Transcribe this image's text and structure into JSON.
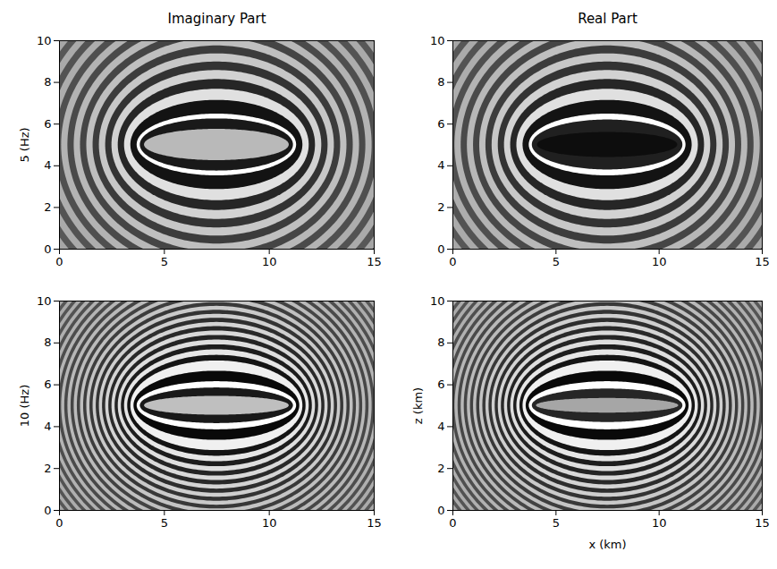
{
  "chart_data": [
    {
      "type": "heatmap",
      "title": "Imaginary Part",
      "ylabel": "5 (Hz)",
      "xlim": [
        0,
        15
      ],
      "ylim": [
        0,
        10
      ],
      "xticks": [
        0,
        5,
        10,
        15
      ],
      "yticks": [
        0,
        2,
        4,
        6,
        8,
        10
      ],
      "zlim": [
        -1,
        1
      ],
      "center": [
        7.5,
        5
      ],
      "rings": [
        {
          "a": 9.5,
          "b": 8.83,
          "value": -0.3
        },
        {
          "a": 9.2,
          "b": 8.51,
          "value": 0.3
        },
        {
          "a": 8.9,
          "b": 8.18,
          "value": -0.32
        },
        {
          "a": 8.6,
          "b": 7.86,
          "value": 0.33
        },
        {
          "a": 8.3,
          "b": 7.53,
          "value": -0.35
        },
        {
          "a": 8.0,
          "b": 7.19,
          "value": 0.36
        },
        {
          "a": 7.7,
          "b": 6.86,
          "value": -0.38
        },
        {
          "a": 7.4,
          "b": 6.52,
          "value": 0.4
        },
        {
          "a": 7.1,
          "b": 6.18,
          "value": -0.42
        },
        {
          "a": 6.8,
          "b": 5.83,
          "value": 0.44
        },
        {
          "a": 6.5,
          "b": 5.48,
          "value": -0.46
        },
        {
          "a": 6.2,
          "b": 5.12,
          "value": 0.5
        },
        {
          "a": 5.9,
          "b": 4.75,
          "value": -0.53
        },
        {
          "a": 5.6,
          "b": 4.37,
          "value": 0.56
        },
        {
          "a": 5.3,
          "b": 3.98,
          "value": -0.6
        },
        {
          "a": 5.0,
          "b": 3.57,
          "value": 0.65
        },
        {
          "a": 4.7,
          "b": 3.14,
          "value": -0.7
        },
        {
          "a": 4.4,
          "b": 2.67,
          "value": 0.76
        },
        {
          "a": 4.1,
          "b": 2.14,
          "value": -0.85
        },
        {
          "a": 3.8,
          "b": 1.48,
          "value": 1.0
        },
        {
          "a": 3.65,
          "b": 1.25,
          "value": -0.8
        },
        {
          "a": 3.45,
          "b": 0.75,
          "value": 0.45
        }
      ]
    },
    {
      "type": "heatmap",
      "title": "Real Part",
      "xlim": [
        0,
        15
      ],
      "ylim": [
        0,
        10
      ],
      "xticks": [
        0,
        5,
        10,
        15
      ],
      "yticks": [
        0,
        2,
        4,
        6,
        8,
        10
      ],
      "zlim": [
        -1,
        1
      ],
      "center": [
        7.5,
        5
      ],
      "rings": [
        {
          "a": 9.5,
          "b": 8.83,
          "value": -0.3
        },
        {
          "a": 9.2,
          "b": 8.51,
          "value": 0.3
        },
        {
          "a": 8.9,
          "b": 8.18,
          "value": -0.32
        },
        {
          "a": 8.6,
          "b": 7.86,
          "value": 0.33
        },
        {
          "a": 8.3,
          "b": 7.53,
          "value": -0.35
        },
        {
          "a": 8.0,
          "b": 7.19,
          "value": 0.36
        },
        {
          "a": 7.7,
          "b": 6.86,
          "value": -0.38
        },
        {
          "a": 7.4,
          "b": 6.52,
          "value": 0.4
        },
        {
          "a": 7.1,
          "b": 6.18,
          "value": -0.42
        },
        {
          "a": 6.8,
          "b": 5.83,
          "value": 0.44
        },
        {
          "a": 6.5,
          "b": 5.48,
          "value": -0.46
        },
        {
          "a": 6.2,
          "b": 5.12,
          "value": 0.5
        },
        {
          "a": 5.9,
          "b": 4.75,
          "value": -0.53
        },
        {
          "a": 5.6,
          "b": 4.37,
          "value": 0.56
        },
        {
          "a": 5.3,
          "b": 3.98,
          "value": -0.6
        },
        {
          "a": 5.0,
          "b": 3.57,
          "value": 0.65
        },
        {
          "a": 4.7,
          "b": 3.14,
          "value": -0.7
        },
        {
          "a": 4.4,
          "b": 2.67,
          "value": 0.76
        },
        {
          "a": 4.1,
          "b": 2.14,
          "value": -0.85
        },
        {
          "a": 3.8,
          "b": 1.48,
          "value": 1.0
        },
        {
          "a": 3.65,
          "b": 1.2,
          "value": -0.75
        },
        {
          "a": 3.4,
          "b": 0.6,
          "value": -0.9
        }
      ]
    },
    {
      "type": "heatmap",
      "ylabel": "10 (Hz)",
      "xlim": [
        0,
        15
      ],
      "ylim": [
        0,
        10
      ],
      "xticks": [
        0,
        5,
        10,
        15
      ],
      "yticks": [
        0,
        2,
        4,
        6,
        8,
        10
      ],
      "zlim": [
        -1,
        1
      ],
      "center": [
        7.5,
        5
      ],
      "rings": [
        {
          "a": 9.5,
          "b": 8.83,
          "value": 0.28
        },
        {
          "a": 9.35,
          "b": 8.67,
          "value": -0.3
        },
        {
          "a": 9.2,
          "b": 8.51,
          "value": 0.31
        },
        {
          "a": 9.05,
          "b": 8.35,
          "value": -0.32
        },
        {
          "a": 8.9,
          "b": 8.18,
          "value": 0.33
        },
        {
          "a": 8.75,
          "b": 8.02,
          "value": -0.34
        },
        {
          "a": 8.6,
          "b": 7.86,
          "value": 0.35
        },
        {
          "a": 8.45,
          "b": 7.69,
          "value": -0.36
        },
        {
          "a": 8.3,
          "b": 7.53,
          "value": 0.37
        },
        {
          "a": 8.15,
          "b": 7.36,
          "value": -0.38
        },
        {
          "a": 8.0,
          "b": 7.19,
          "value": 0.39
        },
        {
          "a": 7.85,
          "b": 7.03,
          "value": -0.4
        },
        {
          "a": 7.7,
          "b": 6.86,
          "value": 0.41
        },
        {
          "a": 7.55,
          "b": 6.69,
          "value": -0.42
        },
        {
          "a": 7.4,
          "b": 6.52,
          "value": 0.43
        },
        {
          "a": 7.25,
          "b": 6.35,
          "value": -0.44
        },
        {
          "a": 7.1,
          "b": 6.18,
          "value": 0.45
        },
        {
          "a": 6.95,
          "b": 6.0,
          "value": -0.46
        },
        {
          "a": 6.8,
          "b": 5.83,
          "value": 0.47
        },
        {
          "a": 6.65,
          "b": 5.65,
          "value": -0.48
        },
        {
          "a": 6.5,
          "b": 5.48,
          "value": 0.5
        },
        {
          "a": 6.35,
          "b": 5.3,
          "value": -0.52
        },
        {
          "a": 6.2,
          "b": 5.12,
          "value": 0.54
        },
        {
          "a": 6.05,
          "b": 4.93,
          "value": -0.56
        },
        {
          "a": 5.9,
          "b": 4.75,
          "value": 0.58
        },
        {
          "a": 5.75,
          "b": 4.56,
          "value": -0.6
        },
        {
          "a": 5.6,
          "b": 4.37,
          "value": 0.62
        },
        {
          "a": 5.45,
          "b": 4.18,
          "value": -0.64
        },
        {
          "a": 5.3,
          "b": 3.98,
          "value": 0.66
        },
        {
          "a": 5.15,
          "b": 3.78,
          "value": -0.68
        },
        {
          "a": 5.0,
          "b": 3.57,
          "value": 0.7
        },
        {
          "a": 4.85,
          "b": 3.36,
          "value": -0.72
        },
        {
          "a": 4.7,
          "b": 3.14,
          "value": 0.74
        },
        {
          "a": 4.55,
          "b": 2.91,
          "value": -0.77
        },
        {
          "a": 4.4,
          "b": 2.67,
          "value": 0.8
        },
        {
          "a": 4.25,
          "b": 2.41,
          "value": -0.84
        },
        {
          "a": 4.1,
          "b": 2.14,
          "value": 0.88
        },
        {
          "a": 3.95,
          "b": 1.65,
          "value": -0.93
        },
        {
          "a": 3.8,
          "b": 1.15,
          "value": 1.0
        },
        {
          "a": 3.65,
          "b": 0.85,
          "value": -0.8
        },
        {
          "a": 3.45,
          "b": 0.45,
          "value": 0.5
        }
      ]
    },
    {
      "type": "heatmap",
      "xlabel": "x (km)",
      "ylabel": "z (km)",
      "xlim": [
        0,
        15
      ],
      "ylim": [
        0,
        10
      ],
      "xticks": [
        0,
        5,
        10,
        15
      ],
      "yticks": [
        0,
        2,
        4,
        6,
        8,
        10
      ],
      "zlim": [
        -1,
        1
      ],
      "center": [
        7.5,
        5
      ],
      "rings": [
        {
          "a": 9.5,
          "b": 8.83,
          "value": 0.28
        },
        {
          "a": 9.35,
          "b": 8.67,
          "value": -0.3
        },
        {
          "a": 9.2,
          "b": 8.51,
          "value": 0.31
        },
        {
          "a": 9.05,
          "b": 8.35,
          "value": -0.32
        },
        {
          "a": 8.9,
          "b": 8.18,
          "value": 0.33
        },
        {
          "a": 8.75,
          "b": 8.02,
          "value": -0.34
        },
        {
          "a": 8.6,
          "b": 7.86,
          "value": 0.35
        },
        {
          "a": 8.45,
          "b": 7.69,
          "value": -0.36
        },
        {
          "a": 8.3,
          "b": 7.53,
          "value": 0.37
        },
        {
          "a": 8.15,
          "b": 7.36,
          "value": -0.38
        },
        {
          "a": 8.0,
          "b": 7.19,
          "value": 0.39
        },
        {
          "a": 7.85,
          "b": 7.03,
          "value": -0.4
        },
        {
          "a": 7.7,
          "b": 6.86,
          "value": 0.41
        },
        {
          "a": 7.55,
          "b": 6.69,
          "value": -0.42
        },
        {
          "a": 7.4,
          "b": 6.52,
          "value": 0.43
        },
        {
          "a": 7.25,
          "b": 6.35,
          "value": -0.44
        },
        {
          "a": 7.1,
          "b": 6.18,
          "value": 0.45
        },
        {
          "a": 6.95,
          "b": 6.0,
          "value": -0.46
        },
        {
          "a": 6.8,
          "b": 5.83,
          "value": 0.47
        },
        {
          "a": 6.65,
          "b": 5.65,
          "value": -0.48
        },
        {
          "a": 6.5,
          "b": 5.48,
          "value": 0.5
        },
        {
          "a": 6.35,
          "b": 5.3,
          "value": -0.52
        },
        {
          "a": 6.2,
          "b": 5.12,
          "value": 0.54
        },
        {
          "a": 6.05,
          "b": 4.93,
          "value": -0.56
        },
        {
          "a": 5.9,
          "b": 4.75,
          "value": 0.58
        },
        {
          "a": 5.75,
          "b": 4.56,
          "value": -0.6
        },
        {
          "a": 5.6,
          "b": 4.37,
          "value": 0.62
        },
        {
          "a": 5.45,
          "b": 4.18,
          "value": -0.64
        },
        {
          "a": 5.3,
          "b": 3.98,
          "value": 0.66
        },
        {
          "a": 5.15,
          "b": 3.78,
          "value": -0.68
        },
        {
          "a": 5.0,
          "b": 3.57,
          "value": 0.7
        },
        {
          "a": 4.85,
          "b": 3.36,
          "value": -0.72
        },
        {
          "a": 4.7,
          "b": 3.14,
          "value": 0.74
        },
        {
          "a": 4.55,
          "b": 2.91,
          "value": -0.77
        },
        {
          "a": 4.4,
          "b": 2.67,
          "value": 0.8
        },
        {
          "a": 4.25,
          "b": 2.41,
          "value": -0.84
        },
        {
          "a": 4.1,
          "b": 2.14,
          "value": 0.88
        },
        {
          "a": 3.95,
          "b": 1.65,
          "value": -0.93
        },
        {
          "a": 3.8,
          "b": 1.15,
          "value": 1.0
        },
        {
          "a": 3.65,
          "b": 0.8,
          "value": -0.7
        },
        {
          "a": 3.45,
          "b": 0.35,
          "value": 0.3
        }
      ]
    }
  ]
}
